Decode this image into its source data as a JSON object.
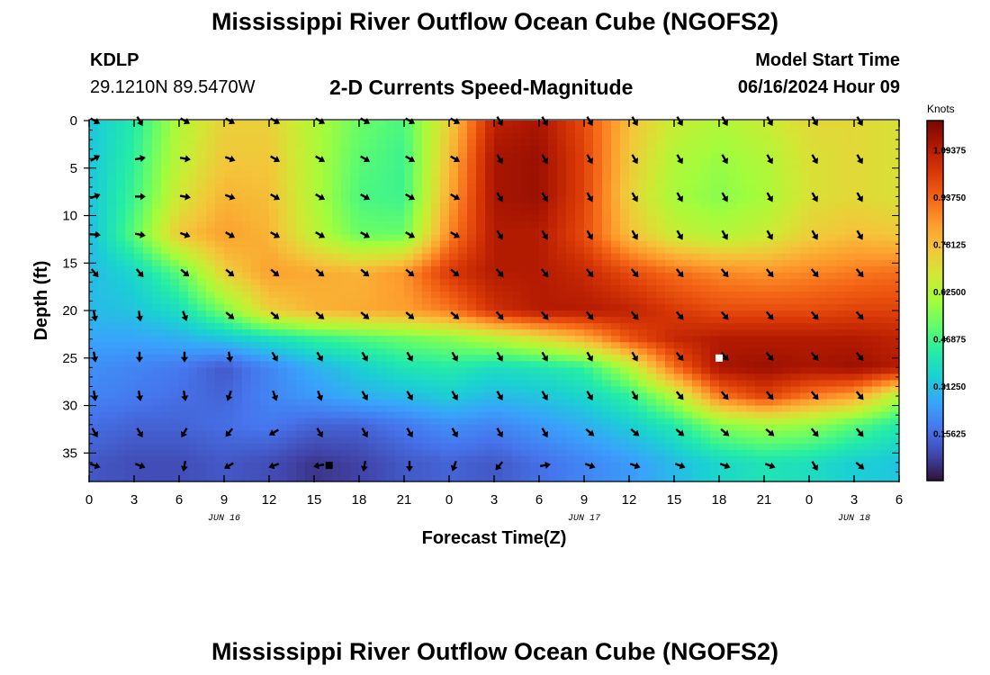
{
  "header": {
    "title": "Mississippi River Outflow Ocean Cube (NGOFS2)",
    "station_id": "KDLP",
    "station_coords": "29.1210N  89.5470W",
    "plot_title": "2-D Currents Speed-Magnitude",
    "model_start_label": "Model Start Time",
    "model_start_value": "06/16/2024 Hour 09"
  },
  "footer": {
    "title": "Mississippi River Outflow Ocean Cube (NGOFS2)"
  },
  "chart_data": {
    "type": "heatmap",
    "title": "2-D Currents Speed-Magnitude",
    "xlabel": "Forecast Time(Z)",
    "ylabel": "Depth (ft)",
    "x_tick_labels": [
      "0",
      "3",
      "6",
      "9",
      "12",
      "15",
      "18",
      "21",
      "0",
      "3",
      "6",
      "9",
      "12",
      "15",
      "18",
      "21",
      "0",
      "3",
      "6"
    ],
    "x_range_hours": [
      0,
      54
    ],
    "date_labels": [
      {
        "label": "JUN 16",
        "hour": 9
      },
      {
        "label": "JUN 17",
        "hour": 33
      },
      {
        "label": "JUN 18",
        "hour": 51
      }
    ],
    "y_ticks": [
      0,
      5,
      10,
      15,
      20,
      25,
      30,
      35
    ],
    "ylim": [
      0,
      38
    ],
    "y_inverted": true,
    "colorbar": {
      "unit": "Knots",
      "range": [
        0.0,
        1.19
      ],
      "tick_labels": [
        "0.15625",
        "0.31250",
        "0.46875",
        "0.62500",
        "0.78125",
        "0.93750",
        "1.09375"
      ],
      "tick_values": [
        0.15625,
        0.3125,
        0.46875,
        0.625,
        0.78125,
        0.9375,
        1.09375
      ],
      "colormap": [
        "#30123b",
        "#4145ab",
        "#4675ed",
        "#39a2fc",
        "#1bcfd4",
        "#24eca6",
        "#61fc6c",
        "#a4fc3b",
        "#d1e834",
        "#f3c63a",
        "#fe9b2d",
        "#f36315",
        "#d93806",
        "#b11901",
        "#7a0403"
      ]
    },
    "speed_grid": {
      "hours": [
        0,
        3,
        6,
        9,
        12,
        15,
        18,
        21,
        24,
        27,
        30,
        33,
        36,
        39,
        42,
        45,
        48,
        51,
        54
      ],
      "depths_ft": [
        0,
        4,
        8,
        12,
        16,
        20,
        23,
        26,
        29,
        32,
        36,
        38
      ],
      "values_knots": [
        [
          0.32,
          0.42,
          0.62,
          0.74,
          0.74,
          0.62,
          0.52,
          0.48,
          0.74,
          1.08,
          1.12,
          0.98,
          0.78,
          0.66,
          0.62,
          0.66,
          0.72,
          0.72,
          0.7
        ],
        [
          0.32,
          0.44,
          0.64,
          0.76,
          0.76,
          0.62,
          0.5,
          0.46,
          0.78,
          1.12,
          1.14,
          1.0,
          0.76,
          0.62,
          0.58,
          0.62,
          0.7,
          0.72,
          0.7
        ],
        [
          0.32,
          0.46,
          0.68,
          0.8,
          0.78,
          0.62,
          0.48,
          0.46,
          0.82,
          1.12,
          1.14,
          1.0,
          0.74,
          0.6,
          0.56,
          0.6,
          0.7,
          0.72,
          0.7
        ],
        [
          0.3,
          0.5,
          0.76,
          0.84,
          0.8,
          0.64,
          0.52,
          0.52,
          0.88,
          1.1,
          1.1,
          0.98,
          0.78,
          0.66,
          0.62,
          0.66,
          0.74,
          0.78,
          0.76
        ],
        [
          0.3,
          0.36,
          0.5,
          0.74,
          0.84,
          0.82,
          0.8,
          0.86,
          1.02,
          1.1,
          1.1,
          1.06,
          0.98,
          0.92,
          0.88,
          0.86,
          0.88,
          0.9,
          0.92
        ],
        [
          0.3,
          0.32,
          0.38,
          0.54,
          0.74,
          0.8,
          0.82,
          0.84,
          0.9,
          1.04,
          1.1,
          1.1,
          1.08,
          1.02,
          0.98,
          0.98,
          0.98,
          1.0,
          1.0
        ],
        [
          0.26,
          0.26,
          0.28,
          0.32,
          0.38,
          0.44,
          0.48,
          0.52,
          0.56,
          0.62,
          0.7,
          0.8,
          0.96,
          1.06,
          1.1,
          1.1,
          1.1,
          1.1,
          1.08
        ],
        [
          0.22,
          0.2,
          0.18,
          0.12,
          0.2,
          0.28,
          0.34,
          0.4,
          0.42,
          0.38,
          0.4,
          0.44,
          0.62,
          0.92,
          1.12,
          1.14,
          1.12,
          1.14,
          1.1
        ],
        [
          0.2,
          0.18,
          0.16,
          0.14,
          0.2,
          0.24,
          0.28,
          0.3,
          0.34,
          0.3,
          0.32,
          0.36,
          0.44,
          0.62,
          0.9,
          1.0,
          0.9,
          0.84,
          0.62
        ],
        [
          0.16,
          0.14,
          0.14,
          0.16,
          0.18,
          0.14,
          0.14,
          0.18,
          0.22,
          0.2,
          0.24,
          0.28,
          0.34,
          0.42,
          0.56,
          0.6,
          0.58,
          0.5,
          0.42
        ],
        [
          0.12,
          0.1,
          0.1,
          0.12,
          0.1,
          0.06,
          0.08,
          0.12,
          0.14,
          0.12,
          0.16,
          0.2,
          0.24,
          0.3,
          0.36,
          0.4,
          0.38,
          0.34,
          0.32
        ],
        [
          0.12,
          0.1,
          0.1,
          0.12,
          0.1,
          0.06,
          0.08,
          0.12,
          0.14,
          0.12,
          0.16,
          0.2,
          0.24,
          0.3,
          0.36,
          0.4,
          0.38,
          0.34,
          0.32
        ]
      ]
    },
    "vector_depths_ft": [
      0,
      4,
      8,
      12,
      16,
      20.5,
      24.8,
      28.9,
      32.8,
      36.3
    ],
    "vector_hours": [
      0,
      3,
      6,
      9,
      12,
      15,
      18,
      21,
      24,
      27,
      30,
      33,
      36,
      39,
      42,
      45,
      48,
      51
    ],
    "vector_directions_deg": [
      [
        120,
        150,
        120,
        120,
        120,
        120,
        120,
        120,
        120,
        150,
        150,
        150,
        150,
        150,
        150,
        150,
        150,
        150
      ],
      [
        60,
        80,
        100,
        110,
        120,
        120,
        120,
        120,
        120,
        150,
        150,
        150,
        150,
        150,
        150,
        150,
        150,
        150
      ],
      [
        70,
        90,
        100,
        110,
        120,
        120,
        120,
        120,
        120,
        150,
        150,
        150,
        150,
        150,
        150,
        150,
        150,
        150
      ],
      [
        95,
        100,
        110,
        120,
        120,
        120,
        120,
        120,
        120,
        150,
        150,
        150,
        150,
        150,
        150,
        150,
        150,
        150
      ],
      [
        140,
        140,
        130,
        130,
        130,
        130,
        130,
        130,
        130,
        140,
        140,
        140,
        140,
        140,
        140,
        140,
        140,
        140
      ],
      [
        170,
        170,
        160,
        130,
        130,
        130,
        130,
        130,
        130,
        140,
        140,
        140,
        140,
        140,
        140,
        140,
        140,
        140
      ],
      [
        170,
        180,
        180,
        170,
        150,
        150,
        150,
        150,
        150,
        150,
        150,
        150,
        150,
        140,
        140,
        140,
        140,
        140
      ],
      [
        170,
        170,
        170,
        200,
        160,
        160,
        150,
        150,
        150,
        150,
        150,
        150,
        150,
        140,
        140,
        140,
        140,
        140
      ],
      [
        150,
        150,
        210,
        220,
        240,
        150,
        150,
        150,
        150,
        150,
        150,
        130,
        130,
        130,
        130,
        130,
        140,
        140
      ],
      [
        110,
        110,
        190,
        240,
        250,
        260,
        190,
        180,
        200,
        220,
        80,
        110,
        110,
        110,
        110,
        110,
        150,
        130
      ]
    ],
    "markers": [
      {
        "hour": 16,
        "depth_ft": 36.3,
        "color": "#000000"
      },
      {
        "hour": 42,
        "depth_ft": 25,
        "color": "#ffffff"
      }
    ]
  }
}
